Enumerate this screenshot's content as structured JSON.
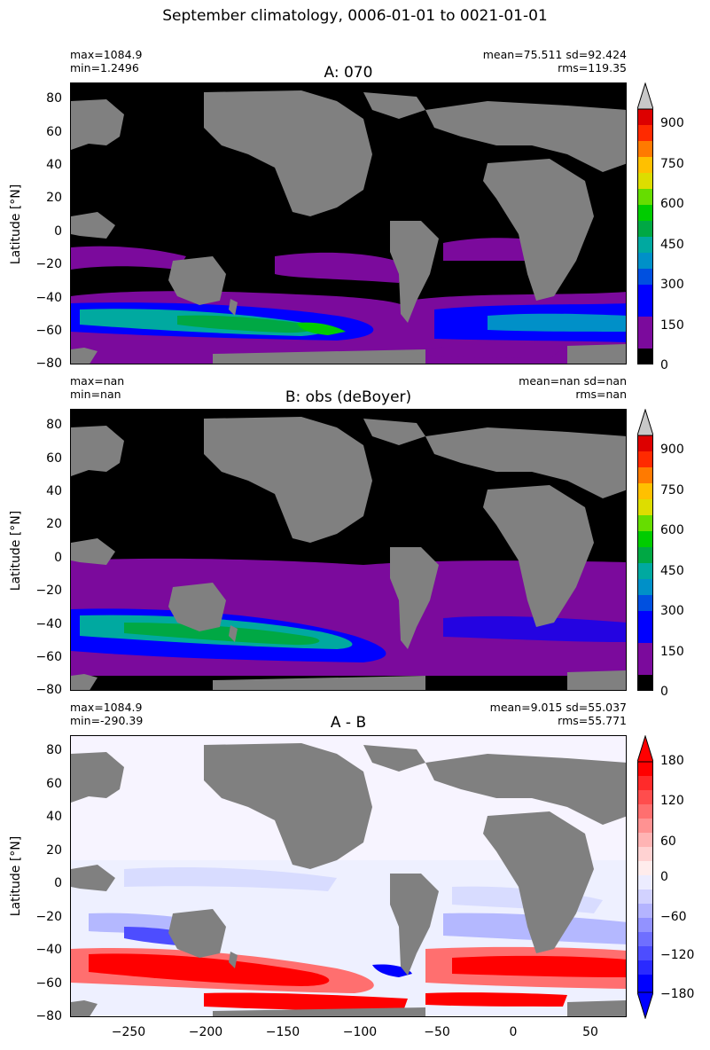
{
  "suptitle": "September climatology, 0006-01-01 to 0021-01-01",
  "chart_data": [
    {
      "type": "heatmap",
      "title": "A: 070",
      "stats_left": [
        "max=1084.9",
        "min=1.2496"
      ],
      "stats_right": [
        "mean=75.511 sd=92.424",
        "rms=119.35"
      ],
      "ylabel": "Latitude [°N]",
      "xlabel": "",
      "ylim": [
        -80,
        90
      ],
      "xlim": [
        -287,
        73
      ],
      "yticks": [
        "80",
        "60",
        "40",
        "20",
        "0",
        "−20",
        "−40",
        "−60",
        "−80"
      ],
      "xticks": [],
      "colorbar": {
        "ticks": [
          "900",
          "750",
          "600",
          "450",
          "300",
          "150",
          "0"
        ],
        "extend": "max",
        "colors": [
          "#000000",
          "#7b0a9c",
          "#7b0a9c",
          "#0000ff",
          "#0050e0",
          "#0090c8",
          "#00a9a0",
          "#00a844",
          "#00cc00",
          "#66dd00",
          "#dddd00",
          "#ffc000",
          "#ff7a00",
          "#ff2a00",
          "#dd0000",
          "#c8c8c8"
        ]
      }
    },
    {
      "type": "heatmap",
      "title": "B: obs (deBoyer)",
      "stats_left": [
        "max=nan",
        "min=nan"
      ],
      "stats_right": [
        "mean=nan sd=nan",
        "rms=nan"
      ],
      "ylabel": "Latitude [°N]",
      "xlabel": "",
      "ylim": [
        -80,
        90
      ],
      "xlim": [
        -287,
        73
      ],
      "yticks": [
        "80",
        "60",
        "40",
        "20",
        "0",
        "−20",
        "−40",
        "−60",
        "−80"
      ],
      "xticks": [],
      "colorbar": {
        "ticks": [
          "900",
          "750",
          "600",
          "450",
          "300",
          "150",
          "0"
        ],
        "extend": "max"
      }
    },
    {
      "type": "heatmap",
      "title": "A - B",
      "stats_left": [
        "max=1084.9",
        "min=-290.39"
      ],
      "stats_right": [
        "mean=9.015 sd=55.037",
        "rms=55.771"
      ],
      "ylabel": "Latitude [°N]",
      "xlabel": "",
      "ylim": [
        -80,
        90
      ],
      "xlim": [
        -287,
        73
      ],
      "yticks": [
        "80",
        "60",
        "40",
        "20",
        "0",
        "−20",
        "−40",
        "−60",
        "−80"
      ],
      "xticks": [
        "−250",
        "−200",
        "−150",
        "−100",
        "−50",
        "0",
        "50"
      ],
      "colorbar": {
        "ticks": [
          "180",
          "120",
          "60",
          "0",
          "−60",
          "−120",
          "−180"
        ],
        "extend": "both",
        "colors": [
          "#0000ff",
          "#2a2aff",
          "#4d4dff",
          "#6f6fff",
          "#9292ff",
          "#b4b4ff",
          "#d2d2ff",
          "#ececff",
          "#ffecec",
          "#ffd2d2",
          "#ffb4b4",
          "#ff9292",
          "#ff6f6f",
          "#ff4d4d",
          "#ff2a2a",
          "#ff0000"
        ]
      }
    }
  ],
  "colors": {
    "land": "#808080",
    "ocean_zero": "#000000",
    "diff_bg": "#eef0ff"
  }
}
